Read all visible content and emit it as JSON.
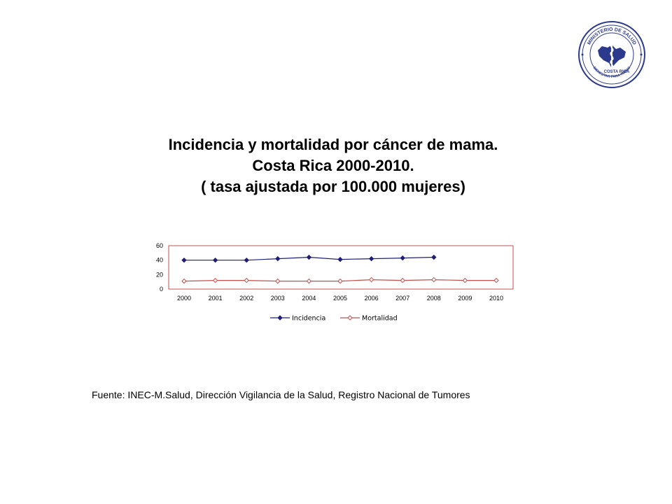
{
  "title_lines": [
    "Incidencia y mortalidad por cáncer de mama.",
    "Costa Rica 2000-2010.",
    "( tasa ajustada por 100.000 mujeres)"
  ],
  "logo": {
    "icon": "ministerio-de-salud-seal-icon",
    "text_top": "MINISTERIO DE SALUD",
    "text_country": "COSTA RICA",
    "text_bottom": "BIENESTAR PARA TODOS",
    "color": "#2b3a8c"
  },
  "chart_data": {
    "type": "line",
    "categories": [
      "2000",
      "2001",
      "2002",
      "2003",
      "2004",
      "2005",
      "2006",
      "2007",
      "2008",
      "2009",
      "2010"
    ],
    "series": [
      {
        "name": "Incidencia",
        "values": [
          40,
          40,
          40,
          42,
          44,
          41,
          42,
          43,
          44,
          null,
          null
        ],
        "color": "#1f1f7a",
        "marker": "filled-diamond"
      },
      {
        "name": "Mortalidad",
        "values": [
          11,
          12,
          12,
          11,
          11,
          11,
          13,
          12,
          13,
          12,
          12
        ],
        "color": "#c0504d",
        "marker": "hollow-diamond"
      }
    ],
    "ylim": [
      0,
      60
    ],
    "yticks": [
      "0",
      "20",
      "40",
      "60"
    ],
    "grid": false,
    "legend_position": "bottom",
    "plot_border_color": "#c0504d"
  },
  "source": "Fuente: INEC-M.Salud, Dirección Vigilancia de la Salud, Registro Nacional de Tumores"
}
